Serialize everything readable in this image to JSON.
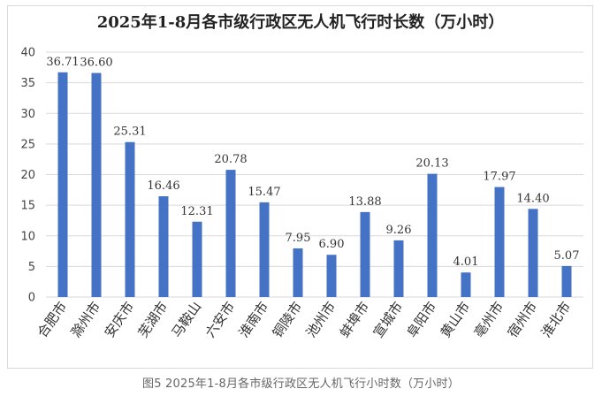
{
  "chart_data": {
    "type": "bar",
    "title": "2025年1-8月各市级行政区无人机飞行时长数（万小时）",
    "categories": [
      "合肥市",
      "滁州市",
      "安庆市",
      "芜湖市",
      "马鞍山",
      "六安市",
      "淮南市",
      "铜陵市",
      "池州市",
      "蚌埠市",
      "宣城市",
      "阜阳市",
      "黄山市",
      "亳州市",
      "宿州市",
      "淮北市"
    ],
    "values": [
      36.71,
      36.6,
      25.31,
      16.46,
      12.31,
      20.78,
      15.47,
      7.95,
      6.9,
      13.88,
      9.26,
      20.13,
      4.01,
      17.97,
      14.4,
      5.07
    ],
    "value_labels": [
      "36.71",
      "36.60",
      "25.31",
      "16.46",
      "12.31",
      "20.78",
      "15.47",
      "7.95",
      "6.90",
      "13.88",
      "9.26",
      "20.13",
      "4.01",
      "17.97",
      "14.40",
      "5.07"
    ],
    "ylim": [
      0,
      40
    ],
    "yticks": [
      "0",
      "5",
      "10",
      "15",
      "20",
      "25",
      "30",
      "35",
      "40"
    ],
    "grid": true,
    "legend": "none",
    "bar_color": "#4472c4",
    "grid_color": "#d9d9d9"
  },
  "caption": "图5 2025年1-8月各市级行政区无人机飞行小时数（万小时）"
}
